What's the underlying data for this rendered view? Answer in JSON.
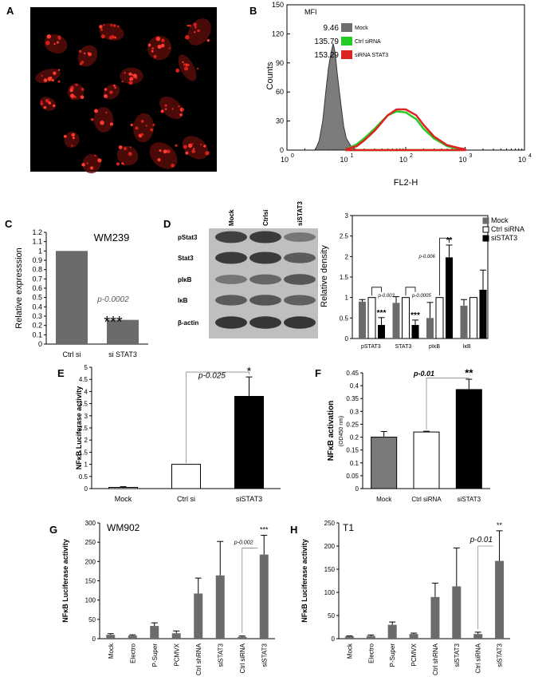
{
  "panels": {
    "A": {
      "letter": "A"
    },
    "B": {
      "letter": "B",
      "chart_data": {
        "type": "area",
        "xlabel": "FL2-H",
        "ylabel": "Counts",
        "xscale": "log",
        "xlim": [
          1,
          10000
        ],
        "ylim": [
          0,
          150
        ],
        "yticks": [
          0,
          30,
          60,
          90,
          120,
          150
        ],
        "xticks": [
          {
            "base": "10",
            "exp": "0"
          },
          {
            "base": "10",
            "exp": "1"
          },
          {
            "base": "10",
            "exp": "2"
          },
          {
            "base": "10",
            "exp": "3"
          },
          {
            "base": "10",
            "exp": "4"
          }
        ],
        "legend_title": "MFI",
        "series": [
          {
            "name": "Mock",
            "mfi": "9.46",
            "color": "#6e6e6e",
            "x": [
              3,
              3.5,
              4,
              4.5,
              5,
              5.5,
              6,
              6.5,
              7,
              8,
              9,
              10,
              12,
              15
            ],
            "y": [
              0,
              10,
              30,
              60,
              85,
              100,
              110,
              100,
              80,
              50,
              25,
              12,
              4,
              0
            ]
          },
          {
            "name": "Ctrl siRNA",
            "mfi": "135.79",
            "color": "#22cc22",
            "x": [
              10,
              15,
              20,
              30,
              40,
              50,
              70,
              100,
              150,
              200,
              300,
              500,
              800
            ],
            "y": [
              1,
              6,
              12,
              22,
              30,
              36,
              40,
              39,
              32,
              22,
              12,
              4,
              1
            ]
          },
          {
            "name": "siRNA STAT3",
            "mfi": "153.29",
            "color": "#dd2222",
            "x": [
              10,
              15,
              20,
              30,
              40,
              50,
              70,
              100,
              150,
              200,
              300,
              500,
              800,
              1000
            ],
            "y": [
              1,
              4,
              10,
              20,
              29,
              36,
              42,
              42,
              36,
              26,
              14,
              5,
              2,
              1
            ]
          }
        ]
      }
    },
    "C": {
      "letter": "C",
      "chart_data": {
        "type": "bar",
        "title": "WM239",
        "ylabel": "Relative expresssion",
        "categories": [
          "Ctrl si",
          "si STAT3"
        ],
        "values": [
          1.0,
          0.26
        ],
        "ylim": [
          0,
          1.2
        ],
        "yticks": [
          "0",
          "0.1",
          "0.2",
          "0.3",
          "0.4",
          "0.5",
          "0.6",
          "0.7",
          "0.8",
          "0.9",
          "1",
          "1.1",
          "1.2"
        ],
        "annotation_p": "p-0.0002",
        "annotation_stars": "***"
      }
    },
    "D": {
      "letter": "D",
      "blot_columns": [
        "Mock",
        "Ctrlsi",
        "siSTAT3"
      ],
      "blot_rows": [
        "pStat3",
        "Stat3",
        "pIκB",
        "IκB",
        "β-actin"
      ],
      "chart_data": {
        "type": "bar",
        "ylabel": "Relative density",
        "categories": [
          "pSTAT3",
          "STAT3",
          "pIκB",
          "IκB"
        ],
        "ylim": [
          0,
          3
        ],
        "yticks": [
          "0",
          "0.5",
          "1",
          "1.5",
          "2",
          "2.5",
          "3"
        ],
        "series": [
          {
            "name": "Mock",
            "values": [
              0.9,
              0.87,
              0.5,
              0.8
            ],
            "errors": [
              0.05,
              0.15,
              0.38,
              0.15
            ]
          },
          {
            "name": "Ctrl siRNA",
            "values": [
              1.0,
              1.0,
              1.0,
              1.0
            ],
            "errors": [
              0,
              0,
              0,
              0
            ]
          },
          {
            "name": "siSTAT3",
            "values": [
              0.33,
              0.33,
              1.98,
              1.19
            ],
            "errors": [
              0.18,
              0.12,
              0.3,
              0.48
            ]
          }
        ],
        "annotations": [
          {
            "p": "p-0.003",
            "stars": "***"
          },
          {
            "p": "p-0.0005",
            "stars": "***"
          },
          {
            "p": "p-0.006",
            "stars": "**"
          },
          {
            "p": "",
            "stars": ""
          }
        ]
      }
    },
    "E": {
      "letter": "E",
      "chart_data": {
        "type": "bar",
        "ylabel": "NFκB Luciferase activity",
        "categories": [
          "Mock",
          "Ctrl si",
          "siSTAT3"
        ],
        "values": [
          0.05,
          1.0,
          3.8
        ],
        "errors": [
          0.03,
          0,
          0.8
        ],
        "ylim": [
          0,
          5
        ],
        "yticks": [
          "0",
          "0.5",
          "1",
          "1.5",
          "2",
          "2.5",
          "3",
          "3.5",
          "4",
          "4.5",
          "5"
        ],
        "annotation_p": "p-0.025",
        "annotation_stars": "*"
      }
    },
    "F": {
      "letter": "F",
      "chart_data": {
        "type": "bar",
        "ylabel": "NFκB activation",
        "ylabel_unit": "(OD450 nm)",
        "categories": [
          "Mock",
          "Ctrl siRNA",
          "siSTAT3"
        ],
        "values": [
          0.2,
          0.22,
          0.385
        ],
        "errors": [
          0.022,
          0.003,
          0.04
        ],
        "ylim": [
          0,
          0.45
        ],
        "yticks": [
          "0",
          "0.05",
          "0.1",
          "0.15",
          "0.2",
          "0.25",
          "0.3",
          "0.35",
          "0.4",
          "0.45"
        ],
        "annotation_p": "p-0.01",
        "annotation_stars": "**"
      }
    },
    "G": {
      "letter": "G",
      "chart_data": {
        "type": "bar",
        "title": "WM902",
        "ylabel": "NFκB Luciferase activity",
        "categories": [
          "Mock",
          "Electro",
          "P-Super",
          "PCMVX",
          "Ctrl shRNA",
          "siSTAT3",
          "Ctrl siRNA",
          "siSTAT3"
        ],
        "values": [
          10,
          8,
          33,
          14,
          117,
          164,
          5,
          218
        ],
        "errors": [
          3,
          2,
          8,
          6,
          40,
          88,
          2,
          50
        ],
        "ylim": [
          0,
          300
        ],
        "yticks": [
          "0",
          "50",
          "100",
          "150",
          "200",
          "250",
          "300"
        ],
        "annotation_p": "p-0.002",
        "annotation_stars": "***"
      }
    },
    "H": {
      "letter": "H",
      "chart_data": {
        "type": "bar",
        "title": "T1",
        "ylabel": "NFκB Luciferase activity",
        "categories": [
          "Mock",
          "Electro",
          "P-Super",
          "PCMVX",
          "Ctrl shRNA",
          "siSTAT3",
          "Ctrl siRNA",
          "siSTAT3"
        ],
        "values": [
          5,
          6,
          30,
          10,
          90,
          113,
          10,
          168
        ],
        "errors": [
          1,
          2,
          6,
          2,
          30,
          83,
          4,
          65
        ],
        "ylim": [
          0,
          250
        ],
        "yticks": [
          "0",
          "50",
          "100",
          "150",
          "200",
          "250"
        ],
        "annotation_p": "p-0.01",
        "annotation_stars": "**"
      }
    }
  }
}
